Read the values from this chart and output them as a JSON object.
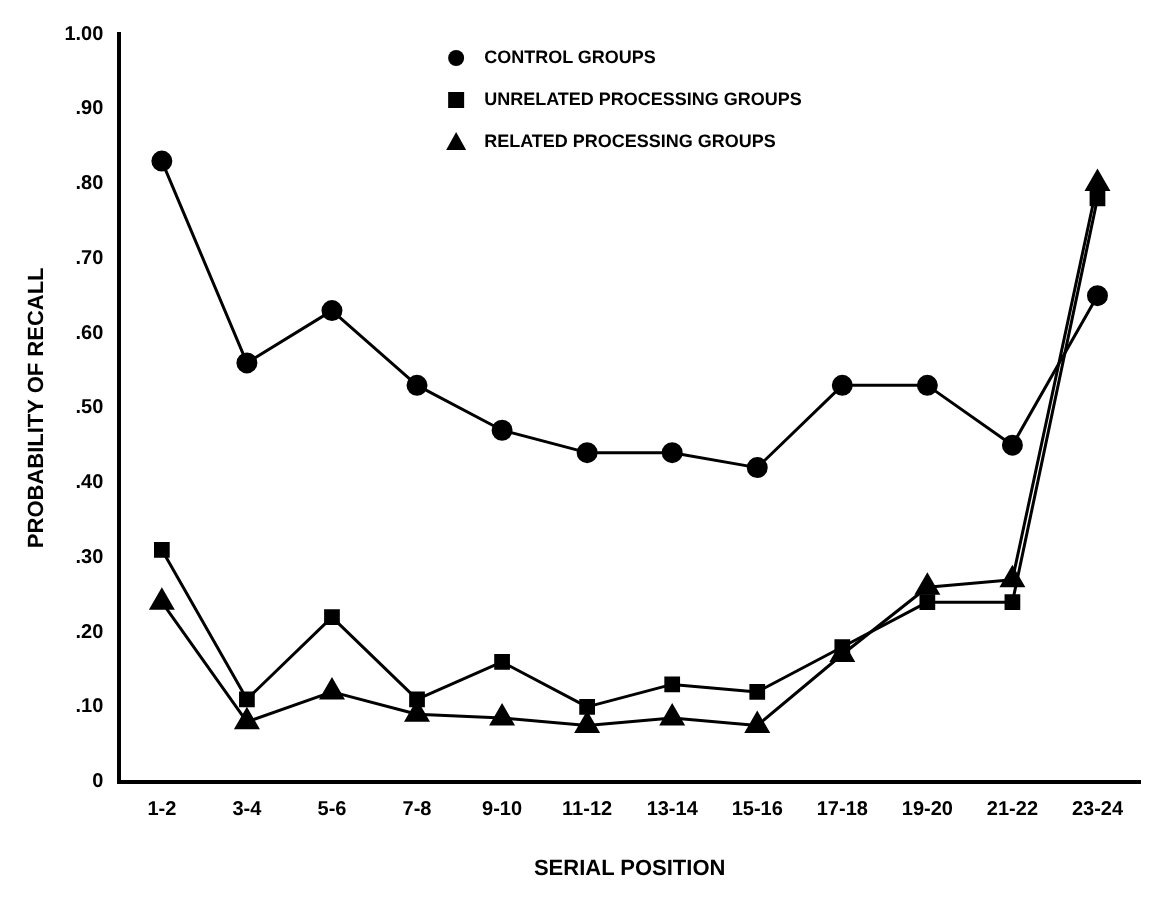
{
  "chart_data": {
    "type": "line",
    "xlabel": "SERIAL POSITION",
    "ylabel": "PROBABILITY OF RECALL",
    "categories": [
      "1-2",
      "3-4",
      "5-6",
      "7-8",
      "9-10",
      "11-12",
      "13-14",
      "15-16",
      "17-18",
      "19-20",
      "21-22",
      "23-24"
    ],
    "series": [
      {
        "name": "CONTROL GROUPS",
        "color": "#000000",
        "marker": "circle",
        "values": [
          0.83,
          0.56,
          0.63,
          0.53,
          0.47,
          0.44,
          0.44,
          0.42,
          0.53,
          0.53,
          0.45,
          0.65
        ]
      },
      {
        "name": "UNRELATED PROCESSING GROUPS",
        "color": "#000000",
        "marker": "square",
        "values": [
          0.31,
          0.11,
          0.22,
          0.11,
          0.16,
          0.1,
          0.13,
          0.12,
          0.18,
          0.24,
          0.24,
          0.78
        ]
      },
      {
        "name": "RELATED PROCESSING GROUPS",
        "color": "#000000",
        "marker": "triangle",
        "values": [
          0.24,
          0.08,
          0.12,
          0.09,
          0.085,
          0.075,
          0.085,
          0.075,
          0.17,
          0.26,
          0.27,
          0.8
        ]
      }
    ],
    "ylim": [
      0,
      1
    ],
    "yticks": [
      0,
      {
        "value": 0.1,
        "label": ".10"
      },
      {
        "value": 0.2,
        "label": ".20"
      },
      {
        "value": 0.3,
        "label": ".30"
      },
      {
        "value": 0.4,
        "label": ".40"
      },
      {
        "value": 0.5,
        "label": ".50"
      },
      {
        "value": 0.6,
        "label": ".60"
      },
      {
        "value": 0.7,
        "label": ".70"
      },
      {
        "value": 0.8,
        "label": ".80"
      },
      {
        "value": 0.9,
        "label": ".90"
      },
      {
        "value": 1,
        "label": "1.00"
      }
    ],
    "grid": false,
    "legend": "top",
    "line_style": "solid"
  }
}
